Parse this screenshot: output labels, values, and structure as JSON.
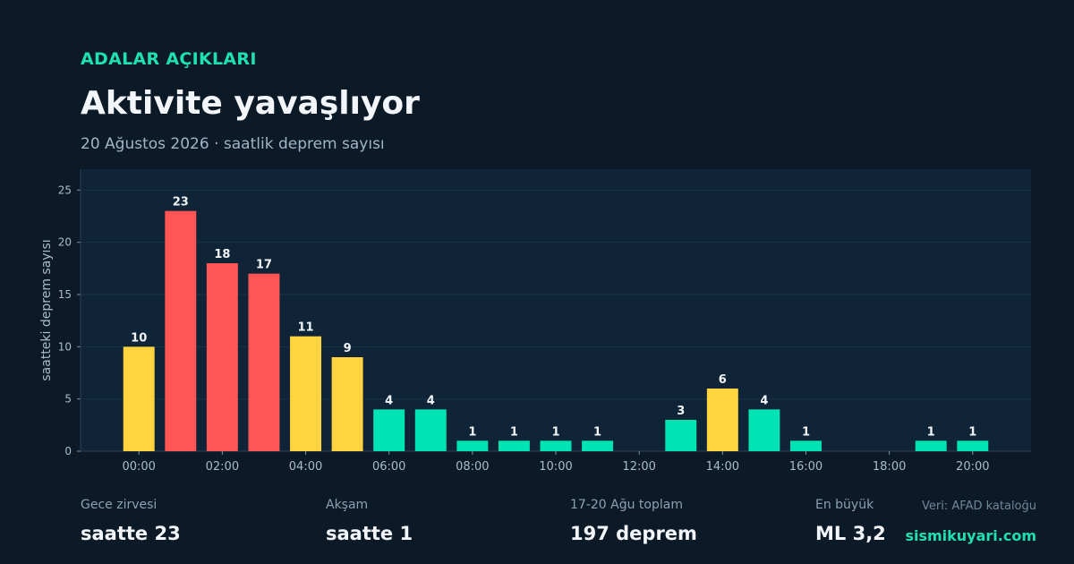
{
  "header": {
    "kicker": "ADALAR AÇIKLARI",
    "title": "Aktivite yavaşlıyor",
    "subtitle": "20 Ağustos 2026 · saatlik deprem sayısı"
  },
  "colors": {
    "background": "#0c1a27",
    "plot_background": "#0f2436",
    "accent": "#1fe0b0",
    "red": "#ff5555",
    "yellow": "#ffd43f",
    "teal": "#00e3b4"
  },
  "chart_data": {
    "type": "bar",
    "title": "",
    "xlabel": "",
    "ylabel": "saatteki deprem sayısı",
    "x": [
      0,
      1,
      2,
      3,
      4,
      5,
      6,
      7,
      8,
      9,
      10,
      11,
      12,
      13,
      14,
      15,
      16,
      17,
      18,
      19,
      20
    ],
    "values": [
      10,
      23,
      18,
      17,
      11,
      9,
      4,
      4,
      1,
      1,
      1,
      1,
      0,
      3,
      6,
      4,
      1,
      0,
      0,
      1,
      1
    ],
    "bar_colors": [
      "yellow",
      "red",
      "red",
      "red",
      "yellow",
      "yellow",
      "teal",
      "teal",
      "teal",
      "teal",
      "teal",
      "teal",
      "teal",
      "teal",
      "yellow",
      "teal",
      "teal",
      "teal",
      "teal",
      "teal",
      "teal"
    ],
    "data_labels": true,
    "x_ticks": [
      0,
      2,
      4,
      6,
      8,
      10,
      12,
      14,
      16,
      18,
      20
    ],
    "x_tick_labels": [
      "00:00",
      "02:00",
      "04:00",
      "06:00",
      "08:00",
      "10:00",
      "12:00",
      "14:00",
      "16:00",
      "18:00",
      "20:00"
    ],
    "y_ticks": [
      0,
      5,
      10,
      15,
      20,
      25
    ],
    "ylim": [
      0,
      27
    ],
    "xlim": [
      -1.4,
      21.4
    ],
    "grid": "horizontal"
  },
  "stats": [
    {
      "label": "Gece zirvesi",
      "value": "saatte 23"
    },
    {
      "label": "Akşam",
      "value": "saatte 1"
    },
    {
      "label": "17-20 Ağu toplam",
      "value": "197 deprem"
    },
    {
      "label": "En büyük",
      "value": "ML 3,2"
    }
  ],
  "footer": {
    "source": "Veri: AFAD kataloğu",
    "site": "sismikuyari.com"
  }
}
